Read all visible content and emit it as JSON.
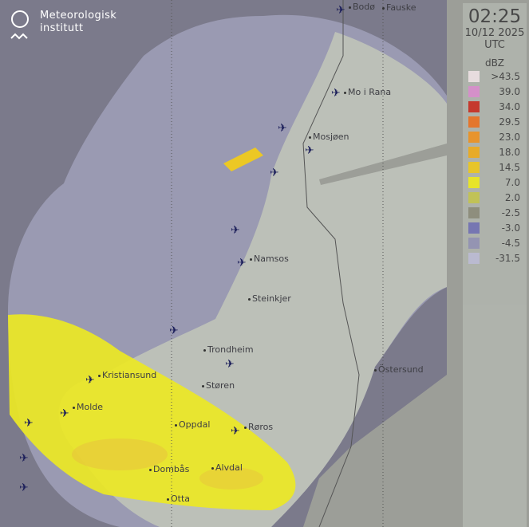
{
  "logo": {
    "line1": "Meteorologisk",
    "line2": "institutt"
  },
  "timestamp": {
    "time": "02:25",
    "date": "10/12 2025",
    "zone": "UTC"
  },
  "legend": {
    "unit": "dBZ",
    "items": [
      {
        "label": ">43.5",
        "color": "#ece0e2"
      },
      {
        "label": "39.0",
        "color": "#d890cc"
      },
      {
        "label": "34.0",
        "color": "#c83428"
      },
      {
        "label": "29.5",
        "color": "#e87428"
      },
      {
        "label": "23.0",
        "color": "#ec9428"
      },
      {
        "label": "18.0",
        "color": "#ecac24"
      },
      {
        "label": "14.5",
        "color": "#ecc824"
      },
      {
        "label": "7.0",
        "color": "#ece824"
      },
      {
        "label": "2.0",
        "color": "#c4c454"
      },
      {
        "label": "-2.5",
        "color": "#8e8e7c"
      },
      {
        "label": "-3.0",
        "color": "#7474b4"
      },
      {
        "label": "-4.5",
        "color": "#9494b4"
      },
      {
        "label": "-31.5",
        "color": "#bcbcd4"
      }
    ]
  },
  "cities": [
    {
      "name": "Bodø"
    },
    {
      "name": "Fauske"
    },
    {
      "name": "Mo i Rana"
    },
    {
      "name": "Mosjøen"
    },
    {
      "name": "Namsos"
    },
    {
      "name": "Steinkjer"
    },
    {
      "name": "Trondheim"
    },
    {
      "name": "Kristiansund"
    },
    {
      "name": "Molde"
    },
    {
      "name": "Støren"
    },
    {
      "name": "Oppdal"
    },
    {
      "name": "Røros"
    },
    {
      "name": "Dombås"
    },
    {
      "name": "Alvdal"
    },
    {
      "name": "Otta"
    },
    {
      "name": "Östersund"
    }
  ],
  "colors": {
    "background": "#7b7a8b",
    "coverage_sea": "#9a9ab2",
    "land_in_coverage": "#bcc0b8",
    "land_outside": "#9c9e98",
    "precip": "#ece824"
  }
}
